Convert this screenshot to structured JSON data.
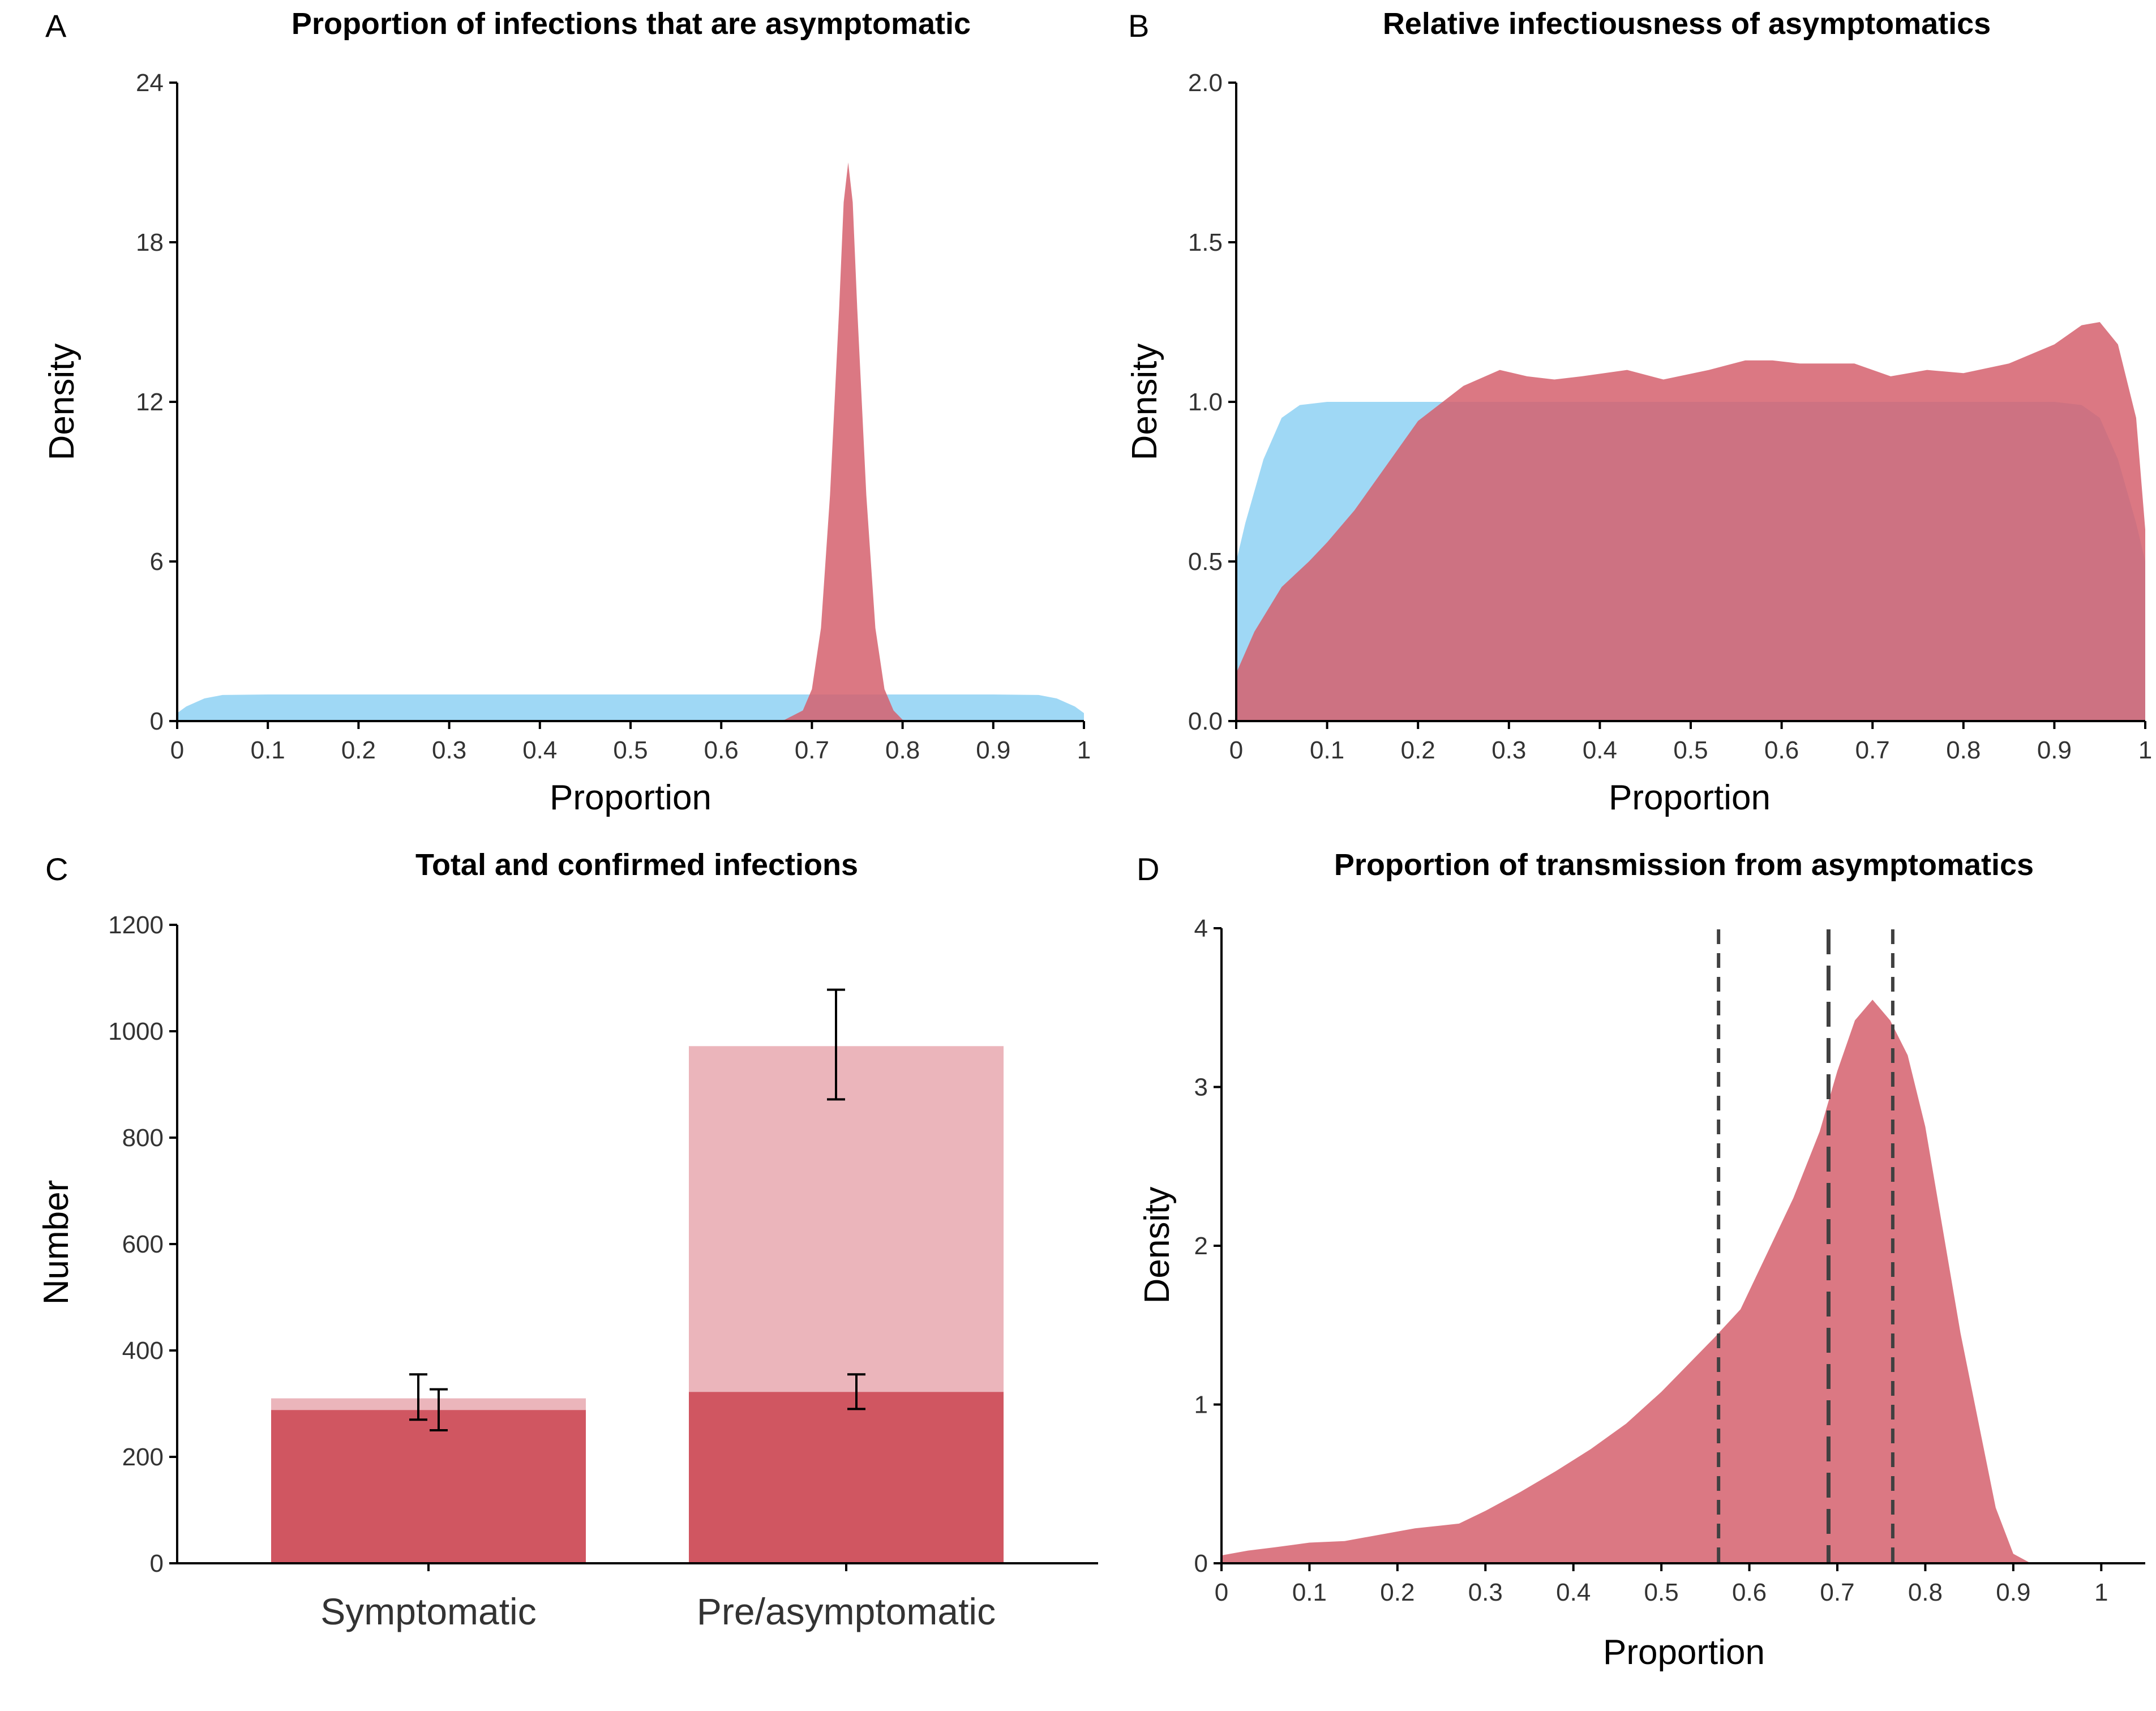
{
  "colors": {
    "red_dens": "#d5606d",
    "blue_dens": "#87cef2",
    "bar_light": "#ebb5bb",
    "bar_dark": "#d05661",
    "vline": "#404040"
  },
  "chart_data": [
    {
      "panel": "A",
      "type": "area",
      "title": "Proportion of infections that are asymptomatic",
      "xlabel": "Proportion",
      "ylabel": "Density",
      "xlim": [
        0,
        1
      ],
      "ylim": [
        0,
        24
      ],
      "xticks": [
        0,
        0.1,
        0.2,
        0.3,
        0.4,
        0.5,
        0.6,
        0.7,
        0.8,
        0.9,
        1
      ],
      "xtick_labels": [
        "0",
        "0.1",
        "0.2",
        "0.3",
        "0.4",
        "0.5",
        "0.6",
        "0.7",
        "0.8",
        "0.9",
        "1"
      ],
      "yticks": [
        0,
        6,
        12,
        18,
        24
      ],
      "ytick_labels": [
        "0",
        "6",
        "12",
        "18",
        "24"
      ],
      "grid": false,
      "series": [
        {
          "color": "blue_dens",
          "opacity": 0.8,
          "x": [
            0,
            0.01,
            0.03,
            0.05,
            0.1,
            0.9,
            0.95,
            0.97,
            0.99,
            1
          ],
          "y": [
            0.3,
            0.55,
            0.85,
            0.98,
            1.0,
            1.0,
            0.98,
            0.85,
            0.55,
            0.3
          ]
        },
        {
          "color": "red_dens",
          "opacity": 0.85,
          "x": [
            0.65,
            0.67,
            0.69,
            0.7,
            0.71,
            0.72,
            0.73,
            0.735,
            0.74,
            0.745,
            0.75,
            0.76,
            0.77,
            0.78,
            0.79,
            0.8,
            0.82
          ],
          "y": [
            0,
            0.05,
            0.4,
            1.2,
            3.5,
            8.5,
            15.5,
            19.5,
            21.0,
            19.5,
            15.5,
            8.5,
            3.5,
            1.2,
            0.4,
            0.05,
            0
          ]
        }
      ]
    },
    {
      "panel": "B",
      "type": "area",
      "title": "Relative infectiousness of asymptomatics",
      "xlabel": "Proportion",
      "ylabel": "Density",
      "xlim": [
        0,
        1
      ],
      "ylim": [
        0,
        2
      ],
      "xticks": [
        0,
        0.1,
        0.2,
        0.3,
        0.4,
        0.5,
        0.6,
        0.7,
        0.8,
        0.9,
        1
      ],
      "xtick_labels": [
        "0",
        "0.1",
        "0.2",
        "0.3",
        "0.4",
        "0.5",
        "0.6",
        "0.7",
        "0.8",
        "0.9",
        "1"
      ],
      "yticks": [
        0,
        0.5,
        1.0,
        1.5,
        2.0
      ],
      "ytick_labels": [
        "0.0",
        "0.5",
        "1.0",
        "1.5",
        "2.0"
      ],
      "grid": false,
      "series": [
        {
          "color": "blue_dens",
          "opacity": 0.8,
          "x": [
            0,
            0.01,
            0.03,
            0.05,
            0.07,
            0.1,
            0.9,
            0.93,
            0.95,
            0.97,
            0.99,
            1
          ],
          "y": [
            0.5,
            0.62,
            0.82,
            0.95,
            0.99,
            1.0,
            1.0,
            0.99,
            0.95,
            0.82,
            0.62,
            0.5
          ]
        },
        {
          "color": "red_dens",
          "opacity": 0.85,
          "x": [
            0,
            0.02,
            0.05,
            0.08,
            0.1,
            0.13,
            0.16,
            0.2,
            0.25,
            0.29,
            0.32,
            0.35,
            0.38,
            0.43,
            0.47,
            0.52,
            0.56,
            0.59,
            0.62,
            0.65,
            0.68,
            0.72,
            0.76,
            0.8,
            0.85,
            0.9,
            0.93,
            0.95,
            0.97,
            0.99,
            1
          ],
          "y": [
            0.15,
            0.28,
            0.42,
            0.5,
            0.56,
            0.66,
            0.78,
            0.94,
            1.05,
            1.1,
            1.08,
            1.07,
            1.08,
            1.1,
            1.07,
            1.1,
            1.13,
            1.13,
            1.12,
            1.12,
            1.12,
            1.08,
            1.1,
            1.09,
            1.12,
            1.18,
            1.24,
            1.25,
            1.18,
            0.95,
            0.6
          ]
        }
      ]
    },
    {
      "panel": "C",
      "type": "bar",
      "title": "Total and confirmed infections",
      "xlabel": "",
      "ylabel": "Number",
      "ylim": [
        0,
        1200
      ],
      "yticks": [
        0,
        200,
        400,
        600,
        800,
        1000,
        1200
      ],
      "ytick_labels": [
        "0",
        "200",
        "400",
        "600",
        "800",
        "1000",
        "1200"
      ],
      "categories": [
        "Symptomatic",
        "Pre/asymptomatic"
      ],
      "series": [
        {
          "color": "bar_light",
          "values": [
            310,
            972
          ],
          "err_low": [
            270,
            872
          ],
          "err_high": [
            355,
            1078
          ]
        },
        {
          "color": "bar_dark",
          "values": [
            288,
            322
          ],
          "err_low": [
            250,
            290
          ],
          "err_high": [
            327,
            355
          ]
        }
      ]
    },
    {
      "panel": "D",
      "type": "area",
      "title": "Proportion of transmission from asymptomatics",
      "xlabel": "Proportion",
      "ylabel": "Density",
      "xlim": [
        0,
        1.05
      ],
      "ylim": [
        0,
        4
      ],
      "xticks": [
        0,
        0.1,
        0.2,
        0.3,
        0.4,
        0.5,
        0.6,
        0.7,
        0.8,
        0.9,
        1
      ],
      "xtick_labels": [
        "0",
        "0.1",
        "0.2",
        "0.3",
        "0.4",
        "0.5",
        "0.6",
        "0.7",
        "0.8",
        "0.9",
        "1"
      ],
      "yticks": [
        0,
        1,
        2,
        3,
        4
      ],
      "ytick_labels": [
        "0",
        "1",
        "2",
        "3",
        "4"
      ],
      "grid": false,
      "vlines": [
        0.565,
        0.69,
        0.763
      ],
      "series": [
        {
          "color": "red_dens",
          "opacity": 0.85,
          "x": [
            0,
            0.03,
            0.06,
            0.1,
            0.14,
            0.18,
            0.22,
            0.27,
            0.3,
            0.34,
            0.38,
            0.42,
            0.46,
            0.5,
            0.53,
            0.56,
            0.59,
            0.62,
            0.65,
            0.68,
            0.7,
            0.72,
            0.74,
            0.76,
            0.78,
            0.8,
            0.82,
            0.84,
            0.86,
            0.88,
            0.9,
            0.92
          ],
          "y": [
            0.05,
            0.08,
            0.1,
            0.13,
            0.14,
            0.18,
            0.22,
            0.25,
            0.33,
            0.45,
            0.58,
            0.72,
            0.88,
            1.08,
            1.25,
            1.42,
            1.6,
            1.95,
            2.3,
            2.72,
            3.1,
            3.42,
            3.55,
            3.42,
            3.2,
            2.75,
            2.1,
            1.45,
            0.9,
            0.35,
            0.06,
            0
          ]
        }
      ]
    }
  ]
}
